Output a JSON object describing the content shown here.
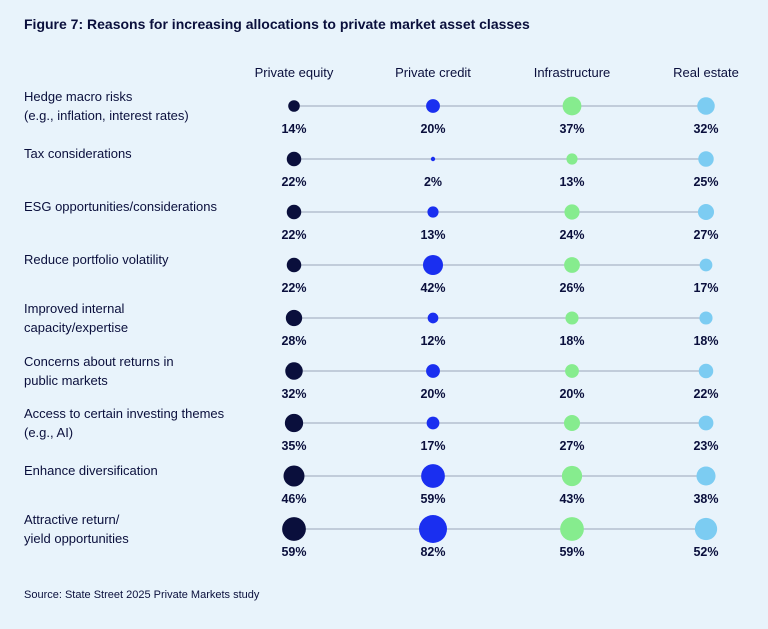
{
  "title": "Figure 7: Reasons for increasing allocations to private market asset classes",
  "source": "Source: State Street 2025 Private Markets study",
  "colors": {
    "background": "#e8f3fb",
    "line": "#9aa6b8",
    "series": [
      "#0a0f3c",
      "#1a2ff0",
      "#86ec8e",
      "#7cccf2"
    ]
  },
  "chart_data": {
    "type": "dot-matrix",
    "series": [
      {
        "name": "Private equity",
        "values": [
          14,
          22,
          22,
          22,
          28,
          32,
          35,
          46,
          59
        ]
      },
      {
        "name": "Private credit",
        "values": [
          20,
          2,
          13,
          42,
          12,
          20,
          17,
          59,
          82
        ]
      },
      {
        "name": "Infrastructure",
        "values": [
          37,
          13,
          24,
          26,
          18,
          20,
          27,
          43,
          59
        ]
      },
      {
        "name": "Real estate",
        "values": [
          32,
          25,
          27,
          17,
          18,
          22,
          23,
          38,
          52
        ]
      }
    ],
    "categories": [
      [
        "Hedge macro risks",
        "(e.g., inflation, interest rates)"
      ],
      [
        "Tax considerations"
      ],
      [
        "ESG opportunities/considerations"
      ],
      [
        "Reduce portfolio volatility"
      ],
      [
        "Improved internal",
        "capacity/expertise"
      ],
      [
        "Concerns about returns in",
        "public markets"
      ],
      [
        "Access to certain investing themes",
        "(e.g., AI)"
      ],
      [
        "Enhance diversification"
      ],
      [
        "Attractive return/",
        "yield opportunities"
      ]
    ],
    "unit": "%"
  }
}
